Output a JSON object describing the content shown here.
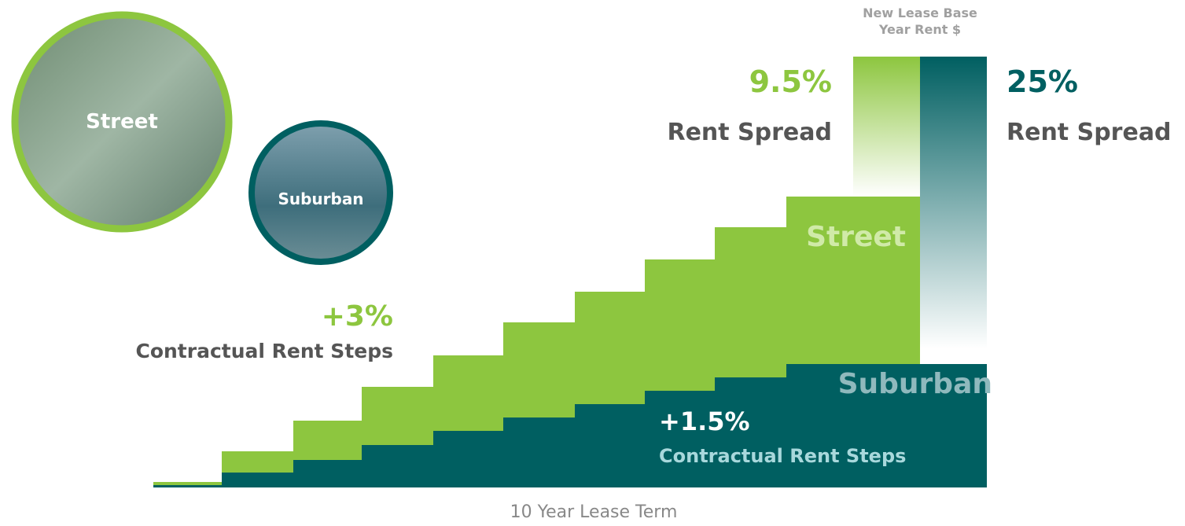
{
  "photos": {
    "street": "Street",
    "suburban": "Suburban"
  },
  "bar_header": "New Lease Base\nYear Rent $",
  "street_spread": {
    "value": "9.5%",
    "label": "Rent Spread"
  },
  "suburban_spread": {
    "value": "25%",
    "label": "Rent Spread"
  },
  "street_steps": {
    "value": "+3%",
    "label": "Contractual Rent Steps"
  },
  "suburban_steps": {
    "value": "+1.5%",
    "label": "Contractual Rent Steps"
  },
  "series_labels": {
    "street": "Street",
    "suburban": "Suburban"
  },
  "x_axis_label": "10 Year Lease Term"
}
